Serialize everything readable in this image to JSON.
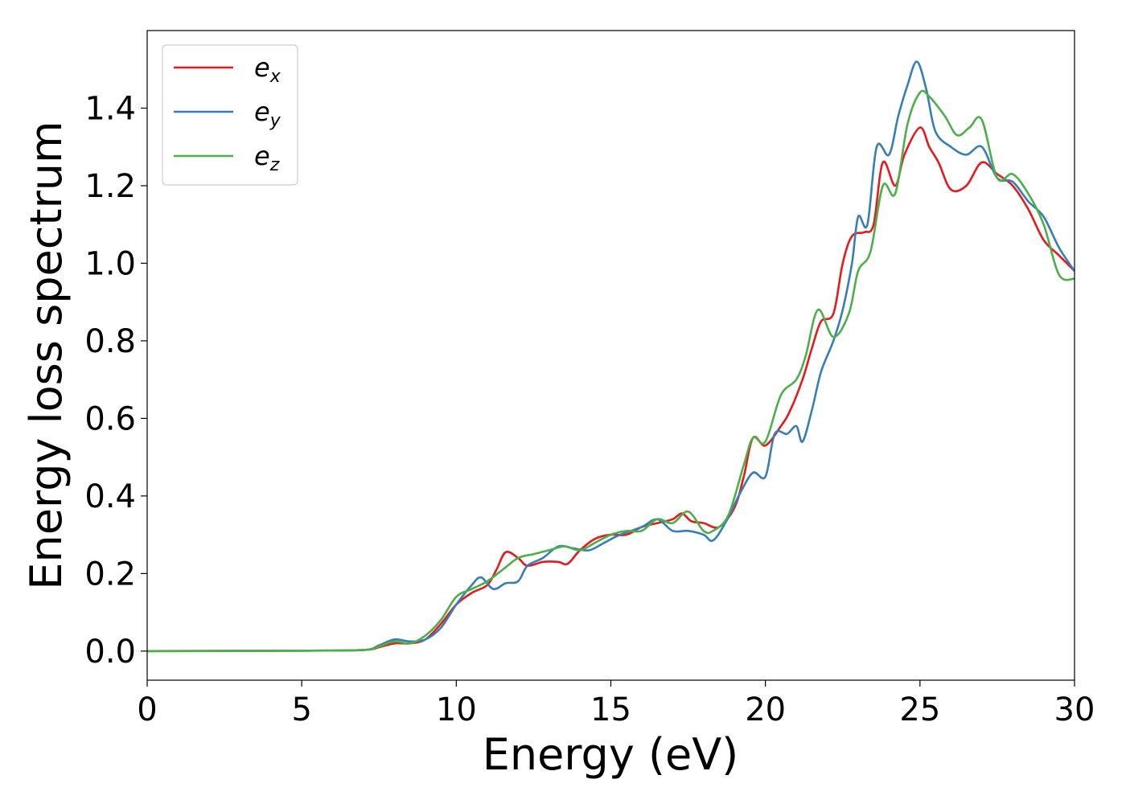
{
  "chart_data": {
    "type": "line",
    "xlabel": "Energy (eV)",
    "ylabel": "Energy loss spectrum",
    "xlim": [
      0,
      30
    ],
    "ylim": [
      -0.075,
      1.6
    ],
    "x_ticks": [
      0,
      5,
      10,
      15,
      20,
      25,
      30
    ],
    "x_tick_labels": [
      "0",
      "5",
      "10",
      "15",
      "20",
      "25",
      "30"
    ],
    "y_ticks": [
      0.0,
      0.2,
      0.4,
      0.6,
      0.8,
      1.0,
      1.2,
      1.4
    ],
    "y_tick_labels": [
      "0.0",
      "0.2",
      "0.4",
      "0.6",
      "0.8",
      "1.0",
      "1.2",
      "1.4"
    ],
    "grid": false,
    "legend_position": "top-left",
    "series": [
      {
        "name": "e_x",
        "legend_base": "e",
        "legend_sub": "x",
        "color": "#e41a1c",
        "points": [
          [
            0,
            0
          ],
          [
            5,
            0.001
          ],
          [
            7,
            0.003
          ],
          [
            7.5,
            0.01
          ],
          [
            8,
            0.02
          ],
          [
            8.5,
            0.02
          ],
          [
            9,
            0.03
          ],
          [
            9.5,
            0.07
          ],
          [
            10,
            0.12
          ],
          [
            10.5,
            0.15
          ],
          [
            11,
            0.17
          ],
          [
            11.3,
            0.21
          ],
          [
            11.6,
            0.255
          ],
          [
            12,
            0.24
          ],
          [
            12.3,
            0.22
          ],
          [
            12.8,
            0.23
          ],
          [
            13.3,
            0.23
          ],
          [
            13.6,
            0.225
          ],
          [
            14,
            0.26
          ],
          [
            14.5,
            0.29
          ],
          [
            15,
            0.3
          ],
          [
            15.5,
            0.3
          ],
          [
            16,
            0.32
          ],
          [
            16.5,
            0.33
          ],
          [
            17,
            0.34
          ],
          [
            17.3,
            0.355
          ],
          [
            17.6,
            0.335
          ],
          [
            18,
            0.33
          ],
          [
            18.5,
            0.32
          ],
          [
            19,
            0.37
          ],
          [
            19.3,
            0.45
          ],
          [
            19.6,
            0.55
          ],
          [
            20,
            0.53
          ],
          [
            20.5,
            0.58
          ],
          [
            20.8,
            0.62
          ],
          [
            21.2,
            0.7
          ],
          [
            21.5,
            0.78
          ],
          [
            21.8,
            0.85
          ],
          [
            22.2,
            0.87
          ],
          [
            22.5,
            1.0
          ],
          [
            22.8,
            1.07
          ],
          [
            23.2,
            1.08
          ],
          [
            23.5,
            1.1
          ],
          [
            23.8,
            1.26
          ],
          [
            24.2,
            1.2
          ],
          [
            24.5,
            1.28
          ],
          [
            25,
            1.35
          ],
          [
            25.3,
            1.3
          ],
          [
            25.6,
            1.26
          ],
          [
            26,
            1.19
          ],
          [
            26.5,
            1.2
          ],
          [
            27,
            1.26
          ],
          [
            27.5,
            1.23
          ],
          [
            28,
            1.2
          ],
          [
            28.5,
            1.14
          ],
          [
            29,
            1.06
          ],
          [
            29.5,
            1.02
          ],
          [
            30,
            0.98
          ]
        ]
      },
      {
        "name": "e_y",
        "legend_base": "e",
        "legend_sub": "y",
        "color": "#377eb8",
        "points": [
          [
            0,
            0
          ],
          [
            5,
            0.001
          ],
          [
            7,
            0.003
          ],
          [
            7.5,
            0.015
          ],
          [
            8,
            0.03
          ],
          [
            8.5,
            0.025
          ],
          [
            9,
            0.03
          ],
          [
            9.5,
            0.06
          ],
          [
            10,
            0.12
          ],
          [
            10.5,
            0.17
          ],
          [
            10.8,
            0.19
          ],
          [
            11.2,
            0.16
          ],
          [
            11.6,
            0.175
          ],
          [
            12,
            0.18
          ],
          [
            12.3,
            0.22
          ],
          [
            12.8,
            0.24
          ],
          [
            13.3,
            0.27
          ],
          [
            13.8,
            0.265
          ],
          [
            14.3,
            0.26
          ],
          [
            14.8,
            0.28
          ],
          [
            15.3,
            0.3
          ],
          [
            16,
            0.32
          ],
          [
            16.5,
            0.34
          ],
          [
            17,
            0.31
          ],
          [
            17.5,
            0.31
          ],
          [
            18,
            0.3
          ],
          [
            18.3,
            0.285
          ],
          [
            18.7,
            0.33
          ],
          [
            19.2,
            0.41
          ],
          [
            19.6,
            0.46
          ],
          [
            20,
            0.45
          ],
          [
            20.3,
            0.56
          ],
          [
            20.7,
            0.56
          ],
          [
            21,
            0.58
          ],
          [
            21.2,
            0.54
          ],
          [
            21.5,
            0.62
          ],
          [
            21.8,
            0.72
          ],
          [
            22.2,
            0.8
          ],
          [
            22.5,
            0.88
          ],
          [
            22.8,
            1.0
          ],
          [
            23,
            1.12
          ],
          [
            23.3,
            1.1
          ],
          [
            23.6,
            1.3
          ],
          [
            24,
            1.28
          ],
          [
            24.3,
            1.38
          ],
          [
            24.6,
            1.46
          ],
          [
            24.9,
            1.52
          ],
          [
            25.2,
            1.45
          ],
          [
            25.5,
            1.34
          ],
          [
            26,
            1.3
          ],
          [
            26.5,
            1.28
          ],
          [
            27,
            1.3
          ],
          [
            27.5,
            1.22
          ],
          [
            28,
            1.21
          ],
          [
            28.5,
            1.16
          ],
          [
            29,
            1.12
          ],
          [
            29.5,
            1.04
          ],
          [
            30,
            0.98
          ]
        ]
      },
      {
        "name": "e_z",
        "legend_base": "e",
        "legend_sub": "z",
        "color": "#4daf4a",
        "points": [
          [
            0,
            0
          ],
          [
            5,
            0.001
          ],
          [
            7,
            0.003
          ],
          [
            7.5,
            0.012
          ],
          [
            8,
            0.025
          ],
          [
            8.5,
            0.02
          ],
          [
            9,
            0.04
          ],
          [
            9.5,
            0.08
          ],
          [
            10,
            0.14
          ],
          [
            10.5,
            0.16
          ],
          [
            11,
            0.18
          ],
          [
            11.5,
            0.21
          ],
          [
            12,
            0.24
          ],
          [
            12.5,
            0.25
          ],
          [
            13,
            0.26
          ],
          [
            13.5,
            0.27
          ],
          [
            14,
            0.26
          ],
          [
            14.5,
            0.28
          ],
          [
            15,
            0.3
          ],
          [
            15.5,
            0.31
          ],
          [
            16,
            0.31
          ],
          [
            16.5,
            0.34
          ],
          [
            17,
            0.33
          ],
          [
            17.5,
            0.36
          ],
          [
            18,
            0.31
          ],
          [
            18.3,
            0.31
          ],
          [
            18.8,
            0.35
          ],
          [
            19.3,
            0.48
          ],
          [
            19.6,
            0.55
          ],
          [
            20,
            0.54
          ],
          [
            20.5,
            0.66
          ],
          [
            21,
            0.7
          ],
          [
            21.3,
            0.76
          ],
          [
            21.7,
            0.88
          ],
          [
            22.2,
            0.81
          ],
          [
            22.7,
            0.87
          ],
          [
            23,
            0.98
          ],
          [
            23.4,
            1.03
          ],
          [
            23.8,
            1.2
          ],
          [
            24.2,
            1.18
          ],
          [
            24.6,
            1.36
          ],
          [
            25,
            1.44
          ],
          [
            25.3,
            1.43
          ],
          [
            25.8,
            1.38
          ],
          [
            26.2,
            1.33
          ],
          [
            26.6,
            1.35
          ],
          [
            27,
            1.37
          ],
          [
            27.5,
            1.22
          ],
          [
            28,
            1.23
          ],
          [
            28.5,
            1.18
          ],
          [
            29,
            1.1
          ],
          [
            29.5,
            0.97
          ],
          [
            30,
            0.96
          ]
        ]
      }
    ]
  }
}
